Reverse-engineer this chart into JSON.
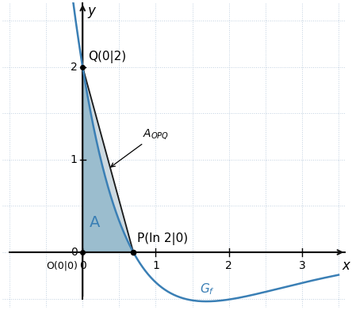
{
  "xlim": [
    -1.1,
    3.6
  ],
  "ylim": [
    -0.6,
    2.7
  ],
  "x_axis_label": "x",
  "y_axis_label": "y",
  "origin_label": "O(0|0)",
  "Q_label": "Q(0|2)",
  "P_label": "P(ln 2|0)",
  "A_label": "A",
  "Gf_label": "G_f",
  "grid_color": "#c0d0e0",
  "curve_color": "#3a7fb5",
  "fill_color_A": "#9bbdce",
  "fill_color_triangle": "#cdd9e0",
  "triangle_line_color": "#1a1a1a",
  "axis_color": "#111111",
  "tick_fontsize": 10,
  "label_fontsize": 12,
  "annotation_fontsize": 11,
  "Q_x": 0,
  "Q_y": 2,
  "P_x": 0.6931471805599453,
  "P_y": 0,
  "O_x": 0,
  "O_y": 0,
  "xticks": [
    0,
    1,
    2,
    3
  ],
  "yticks": [
    0,
    1,
    2
  ],
  "figwidth": 4.44,
  "figheight": 3.92,
  "dpi": 100
}
